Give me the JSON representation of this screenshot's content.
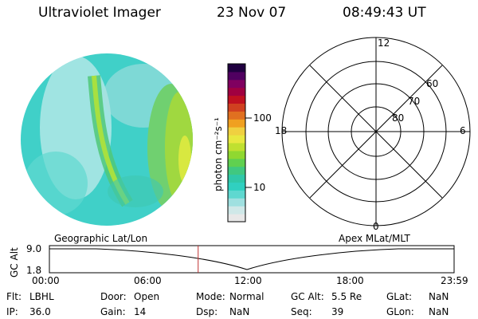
{
  "header": {
    "title": "Ultraviolet Imager",
    "date": "23 Nov 07",
    "time": "08:49:43 UT"
  },
  "colorbar": {
    "unit_label": "photon cm⁻²s⁻¹",
    "ticks": [
      "100",
      "10"
    ],
    "colors": [
      "#e8e8e8",
      "#cfe8e8",
      "#9fe0e0",
      "#5fd8d0",
      "#30d0c0",
      "#30c8a8",
      "#40c880",
      "#60d050",
      "#90d830",
      "#c0e030",
      "#e8e840",
      "#f0d040",
      "#f0a020",
      "#e07020",
      "#d04020",
      "#c01020",
      "#a00040",
      "#800060",
      "#500060",
      "#200040"
    ],
    "accent": "#a01030"
  },
  "polar": {
    "mlt_labels": [
      "12",
      "18",
      "6",
      "0"
    ],
    "lat_labels": [
      "60",
      "70",
      "80"
    ]
  },
  "timeline": {
    "left_title": "Geographic Lat/Lon",
    "right_title": "Apex MLat/MLT",
    "y_label": "GC Alt",
    "y_ticks": [
      "9.0",
      "1.8"
    ],
    "x_ticks": [
      "00:00",
      "06:00",
      "12:00",
      "18:00",
      "23:59"
    ],
    "marker_color": "#c03030",
    "marker_fraction": 0.3676
  },
  "info": {
    "row1": [
      {
        "label": "Flt:",
        "value": "LBHL"
      },
      {
        "label": "Door:",
        "value": "Open"
      },
      {
        "label": "Mode:",
        "value": "Normal"
      },
      {
        "label": "GC Alt:",
        "value": "5.5 Re"
      },
      {
        "label": "GLat:",
        "value": "NaN"
      }
    ],
    "row2": [
      {
        "label": "IP:",
        "value": "36.0"
      },
      {
        "label": "Gain:",
        "value": "14"
      },
      {
        "label": "Dsp:",
        "value": "NaN"
      },
      {
        "label": "Seq:",
        "value": "39"
      },
      {
        "label": "GLon:",
        "value": "NaN"
      }
    ]
  }
}
